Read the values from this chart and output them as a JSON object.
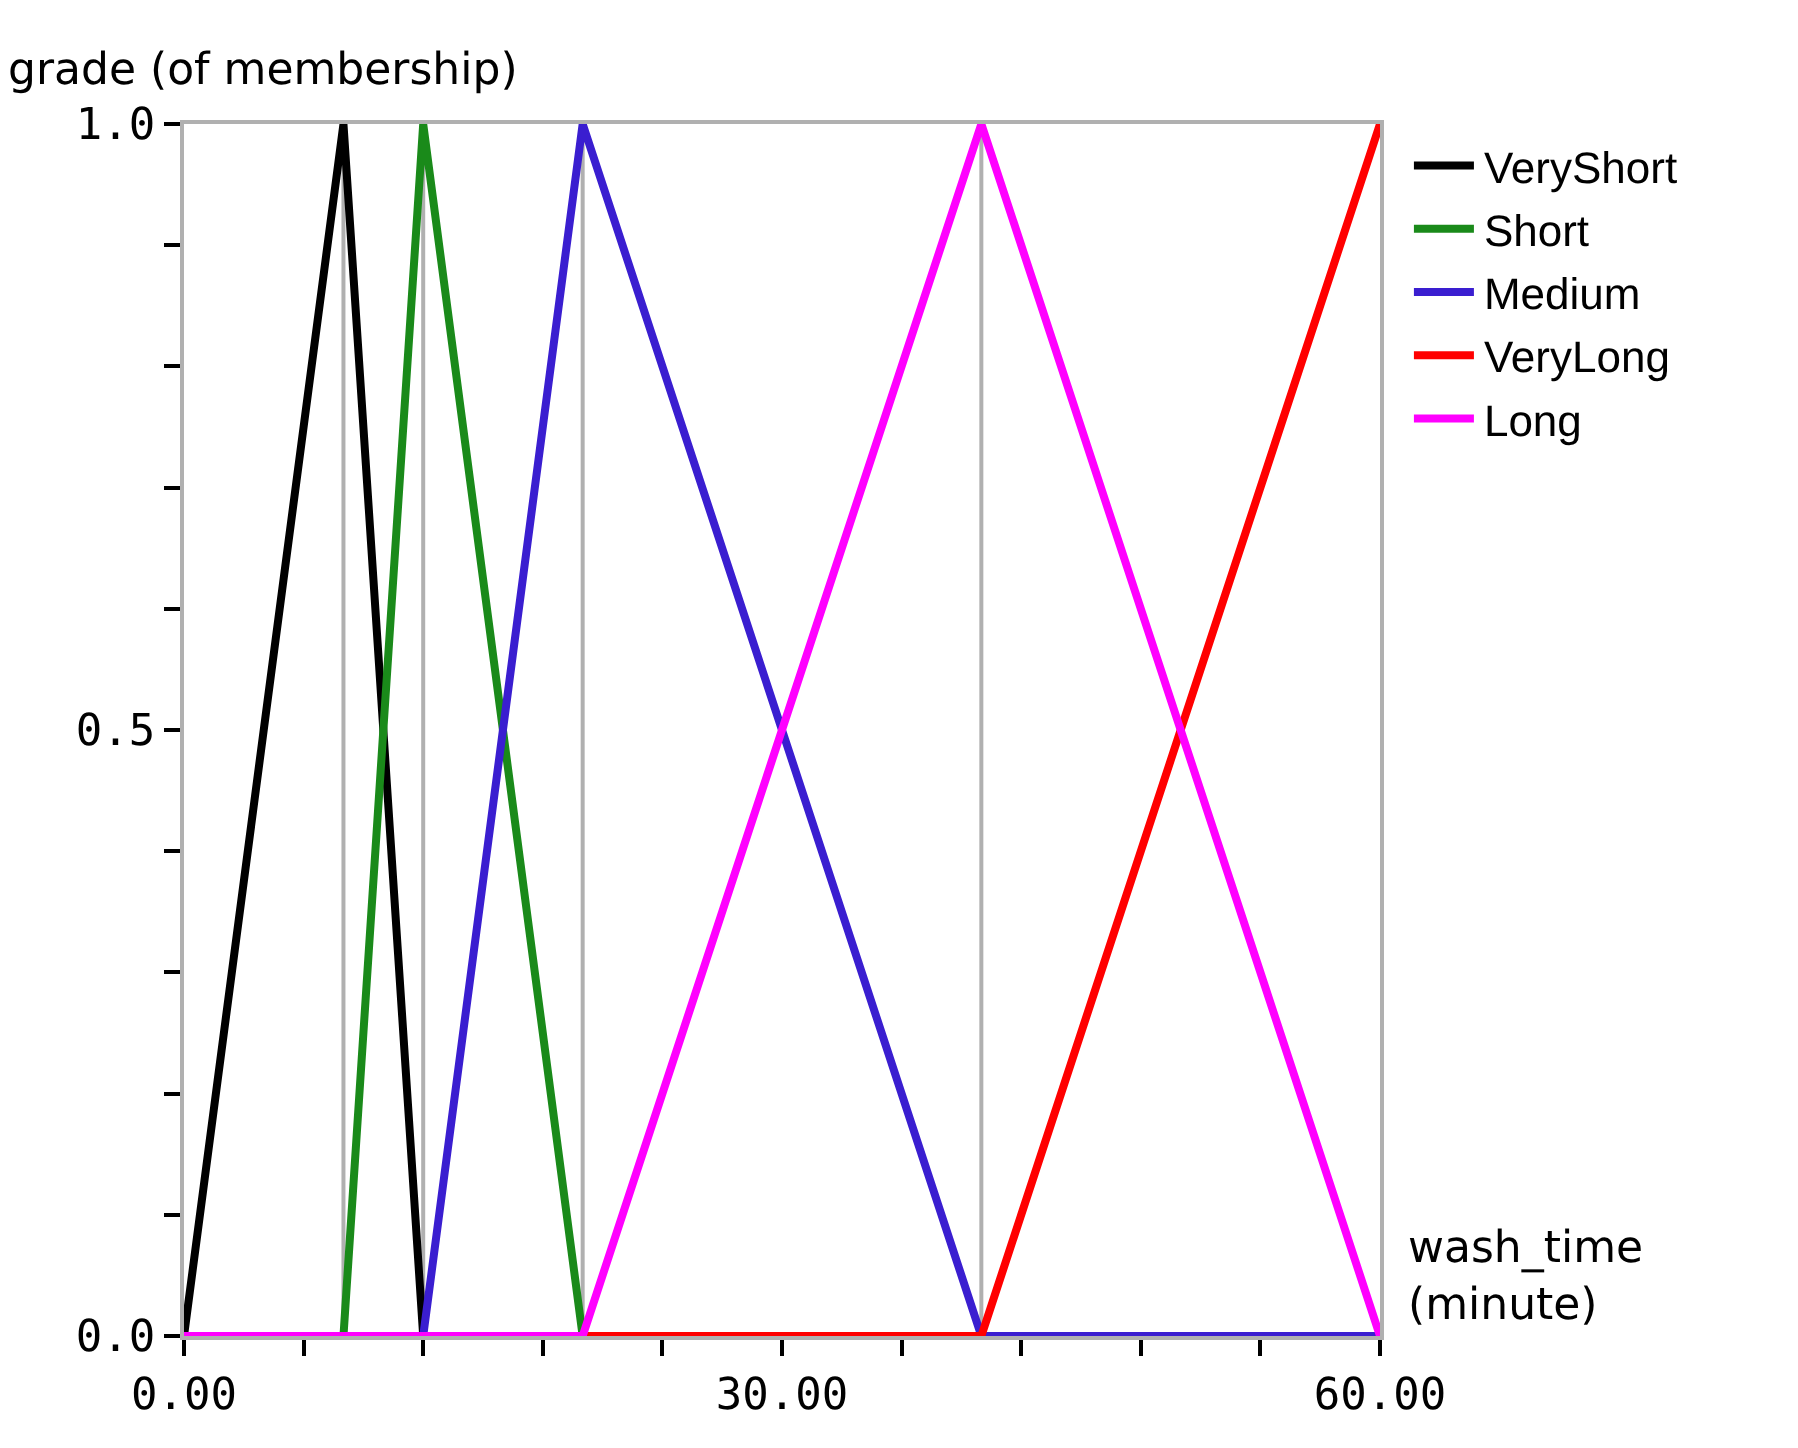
{
  "chart_data": {
    "type": "line",
    "xlabel": "wash_time\n(minute)",
    "ylabel": "grade (of membership)",
    "series": [
      {
        "name": "VeryShort",
        "color": "#000000",
        "x": [
          0,
          8,
          12,
          60
        ],
        "values": [
          0,
          1,
          0,
          0
        ]
      },
      {
        "name": "Short",
        "color": "#1a8a1a",
        "x": [
          0,
          8,
          12,
          20,
          60
        ],
        "values": [
          0,
          0,
          1,
          0,
          0
        ]
      },
      {
        "name": "Medium",
        "color": "#3a1ed0",
        "x": [
          0,
          12,
          20,
          40,
          60
        ],
        "values": [
          0,
          0,
          1,
          0,
          0
        ]
      },
      {
        "name": "VeryLong",
        "color": "#ff0000",
        "x": [
          0,
          40,
          60
        ],
        "values": [
          0,
          0,
          1
        ]
      },
      {
        "name": "Long",
        "color": "#ff00ff",
        "x": [
          0,
          20,
          40,
          60
        ],
        "values": [
          0,
          0,
          1,
          0
        ]
      }
    ],
    "ref_lines": [
      {
        "axis": "x",
        "value": 8,
        "color": "#b0b0b0"
      },
      {
        "axis": "x",
        "value": 12,
        "color": "#b0b0b0"
      },
      {
        "axis": "x",
        "value": 20,
        "color": "#b0b0b0"
      },
      {
        "axis": "x",
        "value": 40,
        "color": "#b0b0b0"
      }
    ],
    "xlim": [
      0,
      60
    ],
    "ylim": [
      0,
      1
    ],
    "xticks": [
      {
        "value": 0,
        "label": "0.00"
      },
      {
        "value": 6,
        "label": null
      },
      {
        "value": 12,
        "label": null
      },
      {
        "value": 18,
        "label": null
      },
      {
        "value": 24,
        "label": null
      },
      {
        "value": 30,
        "label": "30.00"
      },
      {
        "value": 36,
        "label": null
      },
      {
        "value": 42,
        "label": null
      },
      {
        "value": 48,
        "label": null
      },
      {
        "value": 54,
        "label": null
      },
      {
        "value": 60,
        "label": "60.00"
      }
    ],
    "yticks": [
      {
        "value": 0,
        "label": "0.0"
      },
      {
        "value": 0.1,
        "label": null
      },
      {
        "value": 0.2,
        "label": null
      },
      {
        "value": 0.3,
        "label": null
      },
      {
        "value": 0.4,
        "label": null
      },
      {
        "value": 0.5,
        "label": "0.5"
      },
      {
        "value": 0.6,
        "label": null
      },
      {
        "value": 0.7,
        "label": null
      },
      {
        "value": 0.8,
        "label": null
      },
      {
        "value": 0.9,
        "label": null
      },
      {
        "value": 1,
        "label": "1.0"
      }
    ],
    "grid": false,
    "legend": "right",
    "marker": "none",
    "line_style": "solid"
  }
}
